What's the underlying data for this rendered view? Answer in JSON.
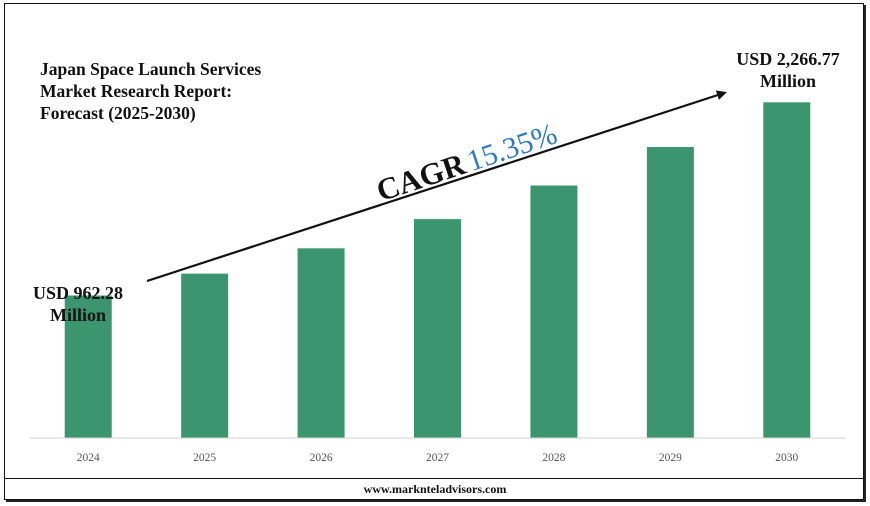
{
  "chart_data": {
    "type": "bar",
    "title_lines": [
      "Japan Space Launch Services",
      "Market Research Report:",
      "Forecast (2025-2030)"
    ],
    "categories": [
      "2024",
      "2025",
      "2026",
      "2027",
      "2028",
      "2029",
      "2030"
    ],
    "values": [
      962.28,
      1110.0,
      1281.0,
      1478.0,
      1705.0,
      1965.0,
      2266.77
    ],
    "unit": "USD Million",
    "ylim": [
      0,
      2350
    ],
    "grid": false,
    "bar_color": "#3b9670",
    "start_label": [
      "USD 962.28",
      "Million"
    ],
    "end_label": [
      "USD 2,266.77",
      "Million"
    ],
    "cagr_label": "CAGR",
    "cagr_value": "15.35%",
    "cagr_color": "#2e7bbf"
  },
  "footer": {
    "website": "www.marknteladvisors.com"
  }
}
